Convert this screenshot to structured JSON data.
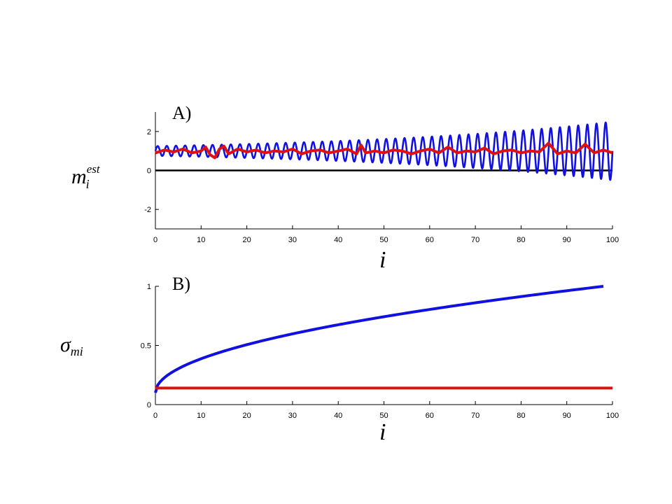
{
  "colors": {
    "series_blue": "#1010e0",
    "series_red": "#e01010",
    "axis": "#000000"
  },
  "chart_data": [
    {
      "type": "line",
      "panel_label": "A)",
      "xlabel": "i",
      "ylabel": {
        "base": "m",
        "sub": "i",
        "sup": "est"
      },
      "xlim": [
        0,
        100
      ],
      "ylim": [
        -3,
        3
      ],
      "xticks": [
        0,
        10,
        20,
        30,
        40,
        50,
        60,
        70,
        80,
        90,
        100
      ],
      "yticks": [
        -2,
        0,
        2
      ],
      "zero_line": true,
      "series": [
        {
          "color": "#1010e0",
          "model": "oscillation",
          "center": 1.0,
          "period": 2,
          "amplitude_start": 0.25,
          "amplitude_end": 1.5,
          "amplitude_growth": "exponential",
          "x_range": [
            0,
            100
          ]
        },
        {
          "color": "#e01010",
          "model": "points",
          "x": [
            0,
            2,
            4,
            6,
            8,
            10,
            11,
            12,
            13,
            14,
            15,
            16,
            18,
            20,
            22,
            24,
            26,
            28,
            30,
            32,
            34,
            36,
            38,
            40,
            42,
            44,
            45,
            46,
            48,
            50,
            52,
            54,
            56,
            58,
            60,
            62,
            64,
            66,
            68,
            70,
            72,
            74,
            76,
            78,
            80,
            82,
            84,
            86,
            88,
            90,
            92,
            94,
            96,
            98,
            100
          ],
          "y": [
            0.9,
            1.05,
            0.95,
            1.1,
            0.9,
            1.0,
            1.2,
            0.8,
            0.65,
            1.1,
            1.25,
            0.85,
            1.1,
            0.95,
            1.05,
            0.9,
            1.0,
            0.95,
            1.1,
            0.85,
            1.0,
            1.05,
            0.9,
            1.0,
            1.1,
            0.85,
            1.3,
            0.9,
            1.0,
            0.9,
            1.05,
            1.0,
            0.85,
            1.0,
            1.1,
            0.9,
            1.2,
            0.9,
            1.0,
            0.95,
            1.15,
            0.85,
            1.0,
            1.05,
            0.9,
            1.0,
            0.95,
            1.4,
            0.85,
            1.0,
            0.9,
            1.35,
            0.9,
            1.05,
            0.9
          ]
        }
      ]
    },
    {
      "type": "line",
      "panel_label": "B)",
      "xlabel": "i",
      "ylabel": {
        "base": "σ",
        "sub": "mi"
      },
      "xlim": [
        0,
        100
      ],
      "ylim": [
        0,
        1
      ],
      "xticks": [
        0,
        10,
        20,
        30,
        40,
        50,
        60,
        70,
        80,
        90,
        100
      ],
      "yticks": [
        0,
        0.5,
        1
      ],
      "series": [
        {
          "color": "#1010e0",
          "model": "sqrt",
          "start": 0.1,
          "end": 1.0,
          "x_range": [
            0,
            98
          ]
        },
        {
          "color": "#e01010",
          "model": "constant",
          "value": 0.14,
          "x_range": [
            0,
            100
          ]
        }
      ]
    }
  ]
}
